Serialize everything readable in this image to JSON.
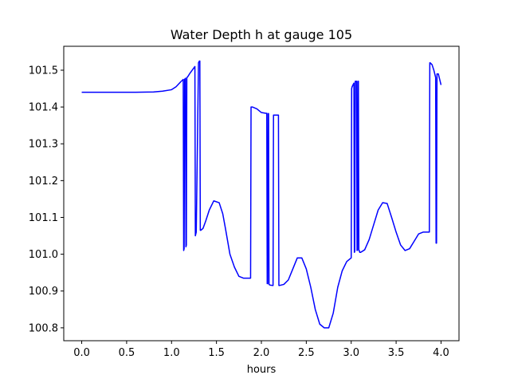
{
  "chart_data": {
    "type": "line",
    "title": "Water Depth h at gauge 105",
    "xlabel": "hours",
    "ylabel": "",
    "xlim": [
      -0.2,
      4.2
    ],
    "ylim": [
      100.765,
      101.565
    ],
    "x_ticks": [
      0.0,
      0.5,
      1.0,
      1.5,
      2.0,
      2.5,
      3.0,
      3.5,
      4.0
    ],
    "x_tick_labels": [
      "0.0",
      "0.5",
      "1.0",
      "1.5",
      "2.0",
      "2.5",
      "3.0",
      "3.5",
      "4.0"
    ],
    "y_ticks": [
      100.8,
      100.9,
      101.0,
      101.1,
      101.2,
      101.3,
      101.4,
      101.5
    ],
    "y_tick_labels": [
      "100.8",
      "100.9",
      "101.0",
      "101.1",
      "101.2",
      "101.3",
      "101.4",
      "101.5"
    ],
    "grid": false,
    "series": [
      {
        "color": "#0000ff",
        "x": [
          0.0,
          0.3,
          0.6,
          0.8,
          0.9,
          1.0,
          1.05,
          1.1,
          1.13,
          1.135,
          1.14,
          1.145,
          1.155,
          1.16,
          1.165,
          1.17,
          1.175,
          1.18,
          1.2,
          1.23,
          1.26,
          1.265,
          1.27,
          1.275,
          1.3,
          1.31,
          1.315,
          1.32,
          1.325,
          1.35,
          1.38,
          1.42,
          1.47,
          1.53,
          1.57,
          1.6,
          1.65,
          1.7,
          1.75,
          1.8,
          1.85,
          1.88,
          1.885,
          1.89,
          1.9,
          1.95,
          2.0,
          2.05,
          2.06,
          2.065,
          2.07,
          2.075,
          2.08,
          2.085,
          2.09,
          2.1,
          2.13,
          2.135,
          2.14,
          2.19,
          2.195,
          2.2,
          2.25,
          2.3,
          2.35,
          2.4,
          2.45,
          2.5,
          2.55,
          2.6,
          2.65,
          2.7,
          2.75,
          2.8,
          2.85,
          2.9,
          2.95,
          3.0,
          3.005,
          3.01,
          3.03,
          3.035,
          3.04,
          3.045,
          3.06,
          3.065,
          3.07,
          3.075,
          3.08,
          3.085,
          3.09,
          3.095,
          3.1,
          3.105,
          3.15,
          3.2,
          3.25,
          3.3,
          3.35,
          3.4,
          3.45,
          3.5,
          3.55,
          3.6,
          3.65,
          3.7,
          3.75,
          3.8,
          3.85,
          3.87,
          3.875,
          3.88,
          3.9,
          3.92,
          3.94,
          3.945,
          3.95,
          3.955,
          3.97,
          3.99,
          4.0
        ],
        "y": [
          101.44,
          101.44,
          101.44,
          101.441,
          101.443,
          101.447,
          101.455,
          101.468,
          101.475,
          101.01,
          101.015,
          101.475,
          101.478,
          101.02,
          101.025,
          101.48,
          101.481,
          101.482,
          101.49,
          101.5,
          101.51,
          101.05,
          101.055,
          101.06,
          101.52,
          101.525,
          101.525,
          101.065,
          101.065,
          101.07,
          101.09,
          101.12,
          101.145,
          101.14,
          101.11,
          101.07,
          101.0,
          100.965,
          100.94,
          100.935,
          100.935,
          100.935,
          101.4,
          101.4,
          101.4,
          101.395,
          101.385,
          101.383,
          101.383,
          100.92,
          100.92,
          101.382,
          101.382,
          100.918,
          100.917,
          100.916,
          100.915,
          101.378,
          101.378,
          101.378,
          100.915,
          100.915,
          100.918,
          100.93,
          100.96,
          100.99,
          100.99,
          100.96,
          100.91,
          100.85,
          100.81,
          100.8,
          100.8,
          100.84,
          100.91,
          100.955,
          100.98,
          100.99,
          101.45,
          101.455,
          101.465,
          101.005,
          101.008,
          101.47,
          101.47,
          101.01,
          101.012,
          101.47,
          101.47,
          101.01,
          101.01,
          101.005,
          101.005,
          101.005,
          101.012,
          101.04,
          101.08,
          101.12,
          101.14,
          101.138,
          101.1,
          101.06,
          101.025,
          101.01,
          101.015,
          101.035,
          101.055,
          101.06,
          101.06,
          101.06,
          101.52,
          101.52,
          101.515,
          101.5,
          101.48,
          101.03,
          101.03,
          101.49,
          101.49,
          101.47,
          101.46
        ]
      }
    ]
  }
}
